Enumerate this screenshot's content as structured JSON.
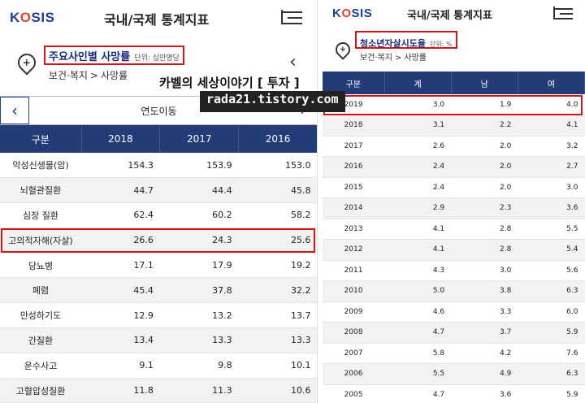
{
  "left": {
    "logo": "KOSIS",
    "app_title": "국내/국제 통계지표",
    "menu_icon": "menu-icon",
    "stat_title": "주요사인별 사망률",
    "stat_unit": "단위: 십만명당",
    "breadcrumb": [
      "보건·복지",
      ">",
      "사망률"
    ],
    "period_label": "연도이동",
    "columns": [
      "구분",
      "2018",
      "2017",
      "2016"
    ],
    "rows": [
      [
        "악성신생물(암)",
        "154.3",
        "153.9",
        "153.0"
      ],
      [
        "뇌혈관질환",
        "44.7",
        "44.4",
        "45.8"
      ],
      [
        "심장 질환",
        "62.4",
        "60.2",
        "58.2"
      ],
      [
        "고의적자해(자살)",
        "26.6",
        "24.3",
        "25.6"
      ],
      [
        "당뇨병",
        "17.1",
        "17.9",
        "19.2"
      ],
      [
        "폐렴",
        "45.4",
        "37.8",
        "32.2"
      ],
      [
        "만성하기도",
        "12.9",
        "13.2",
        "13.7"
      ],
      [
        "간질환",
        "13.4",
        "13.3",
        "13.3"
      ],
      [
        "운수사고",
        "9.1",
        "9.8",
        "10.1"
      ],
      [
        "고혈압성질환",
        "11.8",
        "11.3",
        "10.6"
      ]
    ],
    "highlight_row": 3
  },
  "right": {
    "logo": "KOSIS",
    "app_title": "국내/국제 통계지표",
    "stat_title": "청소년자살시도율",
    "stat_unit": "단위: %",
    "breadcrumb": [
      "보건·복지",
      ">",
      "사망률"
    ],
    "columns": [
      "구분",
      "계",
      "남",
      "여"
    ],
    "rows": [
      [
        "2019",
        "3.0",
        "1.9",
        "4.0"
      ],
      [
        "2018",
        "3.1",
        "2.2",
        "4.1"
      ],
      [
        "2017",
        "2.6",
        "2.0",
        "3.2"
      ],
      [
        "2016",
        "2.4",
        "2.0",
        "2.7"
      ],
      [
        "2015",
        "2.4",
        "2.0",
        "3.0"
      ],
      [
        "2014",
        "2.9",
        "2.3",
        "3.6"
      ],
      [
        "2013",
        "4.1",
        "2.8",
        "5.5"
      ],
      [
        "2012",
        "4.1",
        "2.8",
        "5.4"
      ],
      [
        "2011",
        "4.3",
        "3.0",
        "5.6"
      ],
      [
        "2010",
        "5.0",
        "3.8",
        "6.3"
      ],
      [
        "2009",
        "4.6",
        "3.3",
        "6.0"
      ],
      [
        "2008",
        "4.7",
        "3.7",
        "5.9"
      ],
      [
        "2007",
        "5.8",
        "4.2",
        "7.6"
      ],
      [
        "2006",
        "5.5",
        "4.9",
        "6.3"
      ],
      [
        "2005",
        "4.7",
        "3.6",
        "5.9"
      ]
    ],
    "highlight_row": 0
  },
  "watermark": {
    "line1": "카벨의 세상이야기 [ 투자 ]",
    "line2": "rada21.tistory.com"
  },
  "colors": {
    "header_bg": "#233c78",
    "logo_blue": "#1d3f8f",
    "logo_accent": "#e8441f",
    "highlight": "#d0161b"
  }
}
